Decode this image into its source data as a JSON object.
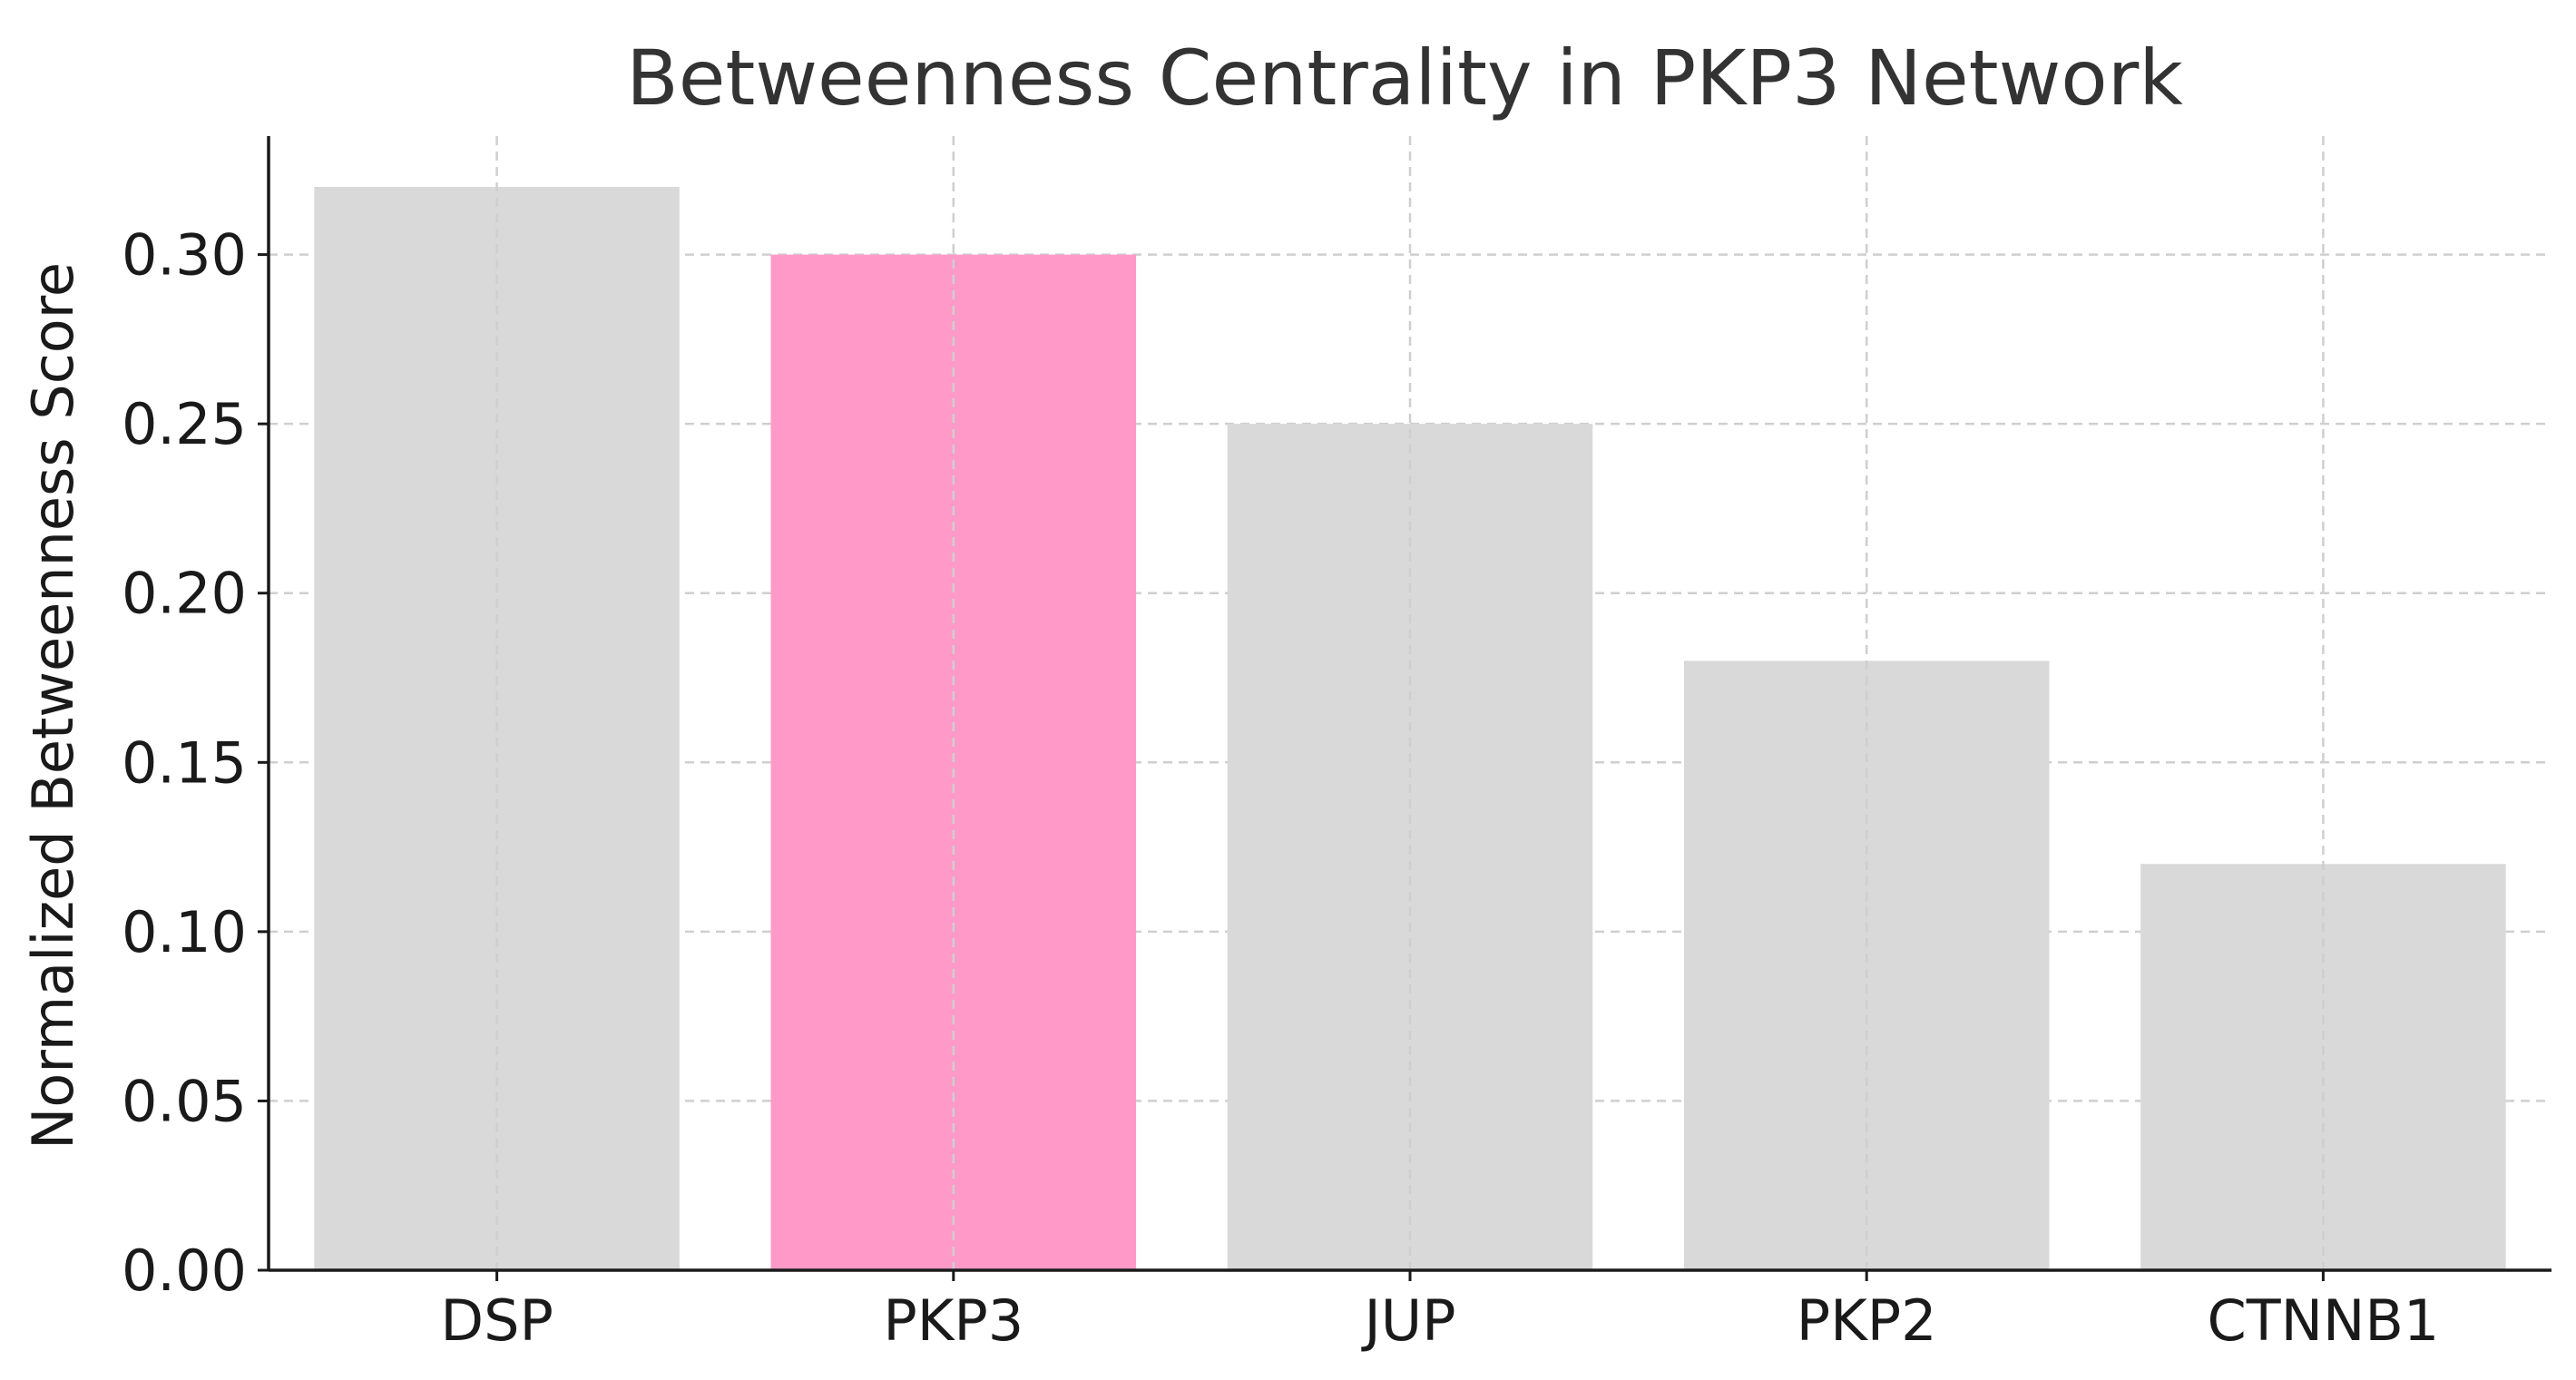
{
  "chart_data": {
    "type": "bar",
    "title": "Betweenness Centrality in PKP3 Network",
    "xlabel": "",
    "ylabel": "Normalized Betweenness Score",
    "categories": [
      "DSP",
      "PKP3",
      "JUP",
      "PKP2",
      "CTNNB1"
    ],
    "values": [
      0.32,
      0.3,
      0.25,
      0.18,
      0.12
    ],
    "bar_colors": [
      "#d9d9d9",
      "#ff9ac8",
      "#d9d9d9",
      "#d9d9d9",
      "#d9d9d9"
    ],
    "ylim": [
      0,
      0.335
    ],
    "yticks": [
      0.0,
      0.05,
      0.1,
      0.15,
      0.2,
      0.25,
      0.3
    ],
    "ytick_labels": [
      "0.00",
      "0.05",
      "0.10",
      "0.15",
      "0.20",
      "0.25",
      "0.30"
    ],
    "grid": true,
    "legend": "none"
  }
}
